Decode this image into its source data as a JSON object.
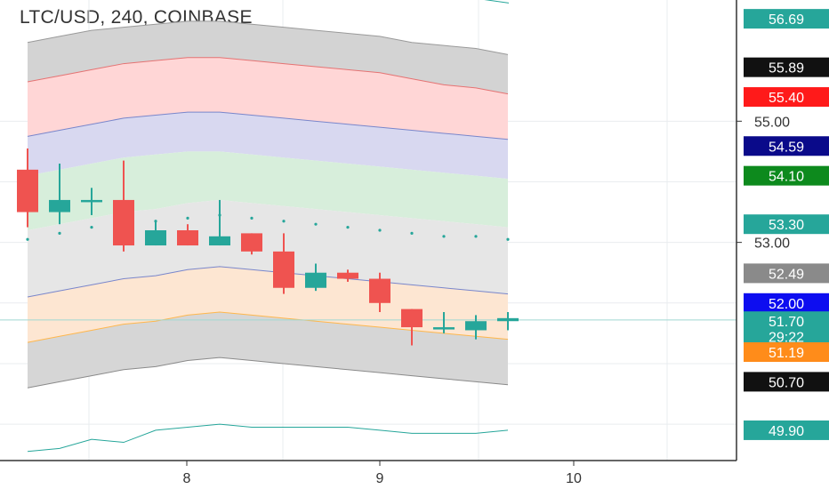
{
  "chart_data": {
    "type": "candlestick",
    "title": "LTC/USD, 240, COINBASE",
    "x_ticks": [
      "8",
      "9",
      "10"
    ],
    "y_ticks": [
      "55.00",
      "53.00"
    ],
    "ylim": [
      49.4,
      57.0
    ],
    "candles": [
      {
        "o": 54.2,
        "h": 54.55,
        "l": 53.25,
        "c": 53.5
      },
      {
        "o": 53.5,
        "h": 54.3,
        "l": 53.3,
        "c": 53.7
      },
      {
        "o": 53.7,
        "h": 53.9,
        "l": 53.45,
        "c": 53.7
      },
      {
        "o": 53.7,
        "h": 54.35,
        "l": 52.85,
        "c": 52.95
      },
      {
        "o": 52.95,
        "h": 53.35,
        "l": 52.95,
        "c": 53.2
      },
      {
        "o": 53.2,
        "h": 53.3,
        "l": 52.95,
        "c": 52.95
      },
      {
        "o": 52.95,
        "h": 53.7,
        "l": 52.95,
        "c": 53.1
      },
      {
        "o": 53.15,
        "h": 53.15,
        "l": 52.8,
        "c": 52.85
      },
      {
        "o": 52.85,
        "h": 53.15,
        "l": 52.15,
        "c": 52.25
      },
      {
        "o": 52.25,
        "h": 52.65,
        "l": 52.2,
        "c": 52.5
      },
      {
        "o": 52.5,
        "h": 52.55,
        "l": 52.35,
        "c": 52.4
      },
      {
        "o": 52.4,
        "h": 52.5,
        "l": 51.85,
        "c": 52.0
      },
      {
        "o": 51.9,
        "h": 51.9,
        "l": 51.3,
        "c": 51.6
      },
      {
        "o": 51.6,
        "h": 51.85,
        "l": 51.5,
        "c": 51.6
      },
      {
        "o": 51.55,
        "h": 51.8,
        "l": 51.4,
        "c": 51.7
      },
      {
        "o": 51.7,
        "h": 51.85,
        "l": 51.55,
        "c": 51.75
      }
    ],
    "bands": {
      "upper": [
        {
          "color": "#d3d3d3",
          "top": [
            56.3,
            56.4,
            56.5,
            56.55,
            56.6,
            56.65,
            56.65,
            56.6,
            56.55,
            56.5,
            56.45,
            56.4,
            56.3,
            56.25,
            56.2,
            56.1
          ]
        },
        {
          "color": "#ffd6d6",
          "top": [
            55.65,
            55.75,
            55.85,
            55.95,
            56.0,
            56.05,
            56.05,
            56.0,
            55.95,
            55.9,
            55.85,
            55.8,
            55.7,
            55.6,
            55.55,
            55.45
          ]
        },
        {
          "color": "#d8d8f0",
          "top": [
            54.75,
            54.85,
            54.95,
            55.05,
            55.1,
            55.15,
            55.15,
            55.1,
            55.05,
            55.0,
            54.95,
            54.9,
            54.85,
            54.8,
            54.75,
            54.7
          ]
        },
        {
          "color": "#d7eedb",
          "top": [
            54.1,
            54.2,
            54.3,
            54.4,
            54.45,
            54.5,
            54.5,
            54.45,
            54.4,
            54.35,
            54.3,
            54.25,
            54.2,
            54.15,
            54.1,
            54.05
          ]
        },
        {
          "color": "#e6e6e6",
          "top": [
            53.2,
            53.3,
            53.4,
            53.5,
            53.55,
            53.65,
            53.7,
            53.65,
            53.6,
            53.55,
            53.5,
            53.45,
            53.4,
            53.35,
            53.3,
            53.25
          ]
        }
      ],
      "lower": [
        {
          "color": "#d4d4f7",
          "bottom": [
            52.1,
            52.2,
            52.3,
            52.4,
            52.45,
            52.55,
            52.6,
            52.55,
            52.5,
            52.45,
            52.4,
            52.35,
            52.3,
            52.25,
            52.2,
            52.15
          ]
        },
        {
          "color": "#fde6d2",
          "bottom": [
            51.35,
            51.45,
            51.55,
            51.65,
            51.7,
            51.8,
            51.85,
            51.8,
            51.75,
            51.7,
            51.65,
            51.6,
            51.55,
            51.5,
            51.45,
            51.4
          ]
        },
        {
          "color": "#d6d6d6",
          "bottom": [
            50.6,
            50.7,
            50.8,
            50.9,
            50.95,
            51.05,
            51.1,
            51.05,
            51.0,
            50.95,
            50.9,
            50.85,
            50.8,
            50.75,
            50.7,
            50.65
          ]
        }
      ]
    },
    "middle_dots": [
      53.05,
      53.15,
      53.25,
      53.3,
      53.35,
      53.4,
      53.45,
      53.4,
      53.35,
      53.3,
      53.25,
      53.2,
      53.15,
      53.1,
      53.1,
      53.05
    ],
    "upper_teal_line": [
      57.1,
      57.05,
      57.0,
      56.95
    ],
    "lower_teal_line": [
      49.55,
      49.6,
      49.75,
      49.7,
      49.9,
      49.95,
      50.0,
      49.95,
      49.95,
      49.95,
      49.95,
      49.9,
      49.85,
      49.85,
      49.85,
      49.9
    ],
    "crosshair_y": 51.72,
    "price_badges": [
      {
        "label": "56.69",
        "value": 56.69,
        "bg": "#26a69a"
      },
      {
        "label": "55.89",
        "value": 55.89,
        "bg": "#111111"
      },
      {
        "label": "55.40",
        "value": 55.4,
        "bg": "#ff1a1a"
      },
      {
        "label": "54.59",
        "value": 54.59,
        "bg": "#0a0a8a"
      },
      {
        "label": "54.10",
        "value": 54.1,
        "bg": "#0d8a1d"
      },
      {
        "label": "53.30",
        "value": 53.3,
        "bg": "#26a69a"
      },
      {
        "label": "52.49",
        "value": 52.49,
        "bg": "#8a8a8a"
      },
      {
        "label": "52.00",
        "value": 52.0,
        "bg": "#0d0df0"
      },
      {
        "label": "51.70",
        "value": 51.7,
        "bg": "#26a69a"
      },
      {
        "label": "29:22",
        "value": 51.45,
        "bg": "#26a69a"
      },
      {
        "label": "51.19",
        "value": 51.19,
        "bg": "#ff8c1a"
      },
      {
        "label": "50.70",
        "value": 50.7,
        "bg": "#111111"
      },
      {
        "label": "49.90",
        "value": 49.9,
        "bg": "#26a69a"
      }
    ],
    "colors": {
      "up": "#26a69a",
      "down": "#ef5350",
      "grid": "#e9ecef",
      "axis": "#333333"
    }
  }
}
